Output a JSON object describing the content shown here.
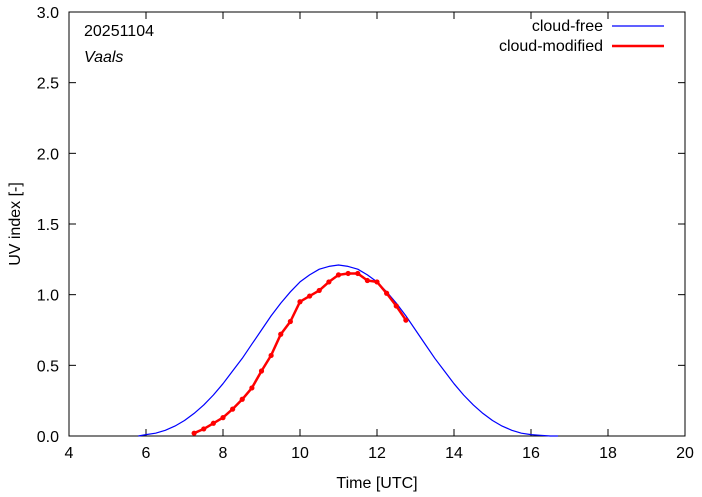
{
  "chart_data": {
    "type": "line",
    "date_label": "20251104",
    "location_label": "Vaals",
    "xlabel": "Time  [UTC]",
    "ylabel": "UV index  [-]",
    "xlim": [
      4,
      20
    ],
    "ylim": [
      0,
      3
    ],
    "xticks": [
      "4",
      "6",
      "8",
      "10",
      "12",
      "14",
      "16",
      "18",
      "20"
    ],
    "yticks": [
      "0.0",
      "0.5",
      "1.0",
      "1.5",
      "2.0",
      "2.5",
      "3.0"
    ],
    "grid": false,
    "legend_position": "top-right",
    "series": [
      {
        "name": "cloud-free",
        "color": "#0000ff",
        "markers": false,
        "x": [
          5.8,
          6.0,
          6.25,
          6.5,
          6.75,
          7.0,
          7.25,
          7.5,
          7.75,
          8.0,
          8.25,
          8.5,
          8.75,
          9.0,
          9.25,
          9.5,
          9.75,
          10.0,
          10.25,
          10.5,
          10.75,
          11.0,
          11.25,
          11.5,
          11.75,
          12.0,
          12.25,
          12.5,
          12.75,
          13.0,
          13.25,
          13.5,
          13.75,
          14.0,
          14.25,
          14.5,
          14.75,
          15.0,
          15.25,
          15.5,
          15.75,
          16.0,
          16.25,
          16.5,
          16.7
        ],
        "y": [
          0.0,
          0.01,
          0.02,
          0.04,
          0.07,
          0.11,
          0.16,
          0.22,
          0.29,
          0.37,
          0.46,
          0.55,
          0.65,
          0.75,
          0.85,
          0.94,
          1.02,
          1.09,
          1.14,
          1.18,
          1.2,
          1.21,
          1.2,
          1.18,
          1.14,
          1.09,
          1.02,
          0.94,
          0.85,
          0.75,
          0.65,
          0.55,
          0.46,
          0.37,
          0.29,
          0.22,
          0.16,
          0.11,
          0.07,
          0.04,
          0.02,
          0.01,
          0.005,
          0.0,
          0.0
        ]
      },
      {
        "name": "cloud-modified",
        "color": "#ff0000",
        "markers": true,
        "x": [
          7.25,
          7.5,
          7.75,
          8.0,
          8.25,
          8.5,
          8.75,
          9.0,
          9.25,
          9.5,
          9.75,
          10.0,
          10.25,
          10.5,
          10.75,
          11.0,
          11.25,
          11.5,
          11.75,
          12.0,
          12.25,
          12.5,
          12.75
        ],
        "y": [
          0.02,
          0.05,
          0.09,
          0.13,
          0.19,
          0.26,
          0.34,
          0.46,
          0.57,
          0.72,
          0.81,
          0.95,
          0.99,
          1.03,
          1.09,
          1.14,
          1.15,
          1.15,
          1.1,
          1.09,
          1.01,
          0.92,
          0.82
        ]
      }
    ]
  }
}
